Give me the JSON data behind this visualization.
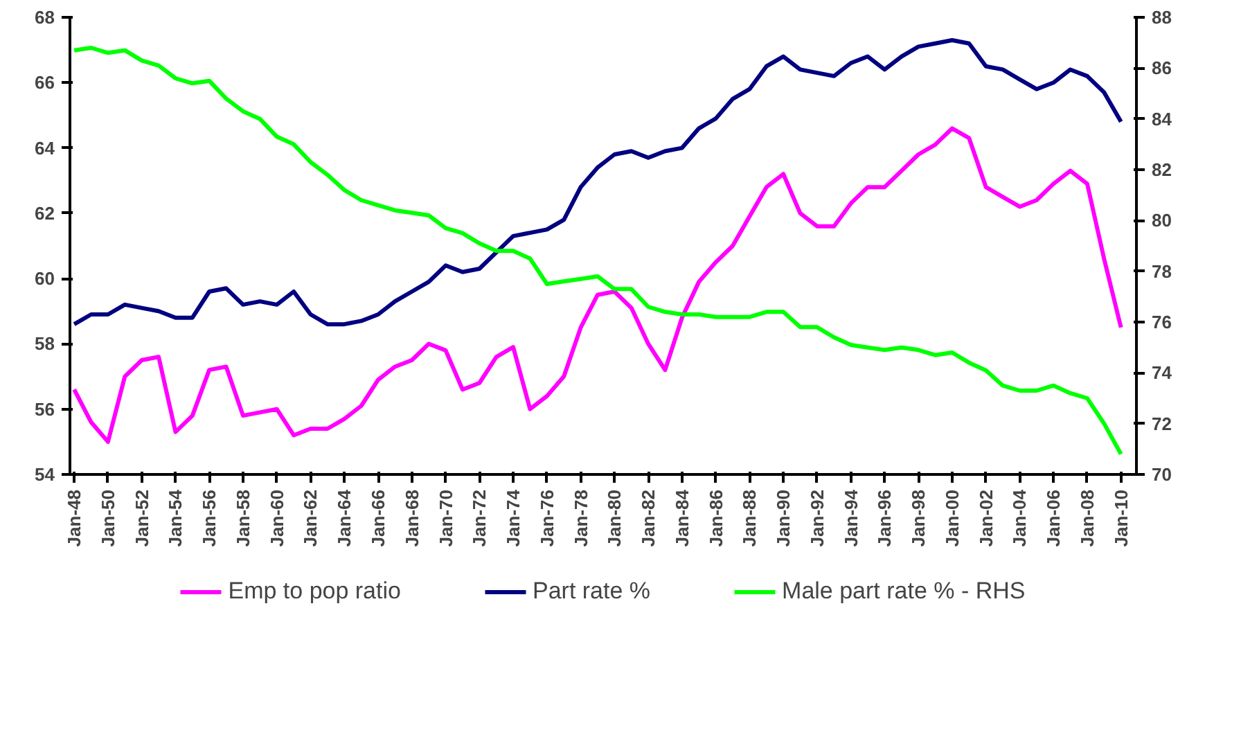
{
  "chart_data": {
    "type": "line",
    "x": [
      "1948",
      "1949",
      "1950",
      "1951",
      "1952",
      "1953",
      "1954",
      "1955",
      "1956",
      "1957",
      "1958",
      "1959",
      "1960",
      "1961",
      "1962",
      "1963",
      "1964",
      "1965",
      "1966",
      "1967",
      "1968",
      "1969",
      "1970",
      "1971",
      "1972",
      "1973",
      "1974",
      "1975",
      "1976",
      "1977",
      "1978",
      "1979",
      "1980",
      "1981",
      "1982",
      "1983",
      "1984",
      "1985",
      "1986",
      "1987",
      "1988",
      "1989",
      "1990",
      "1991",
      "1992",
      "1993",
      "1994",
      "1995",
      "1996",
      "1997",
      "1998",
      "1999",
      "2000",
      "2001",
      "2002",
      "2003",
      "2004",
      "2005",
      "2006",
      "2007",
      "2008",
      "2009",
      "2010"
    ],
    "series": [
      {
        "name": "Emp to pop ratio",
        "color": "#ff00ff",
        "values": [
          56.6,
          55.6,
          55.0,
          57.0,
          57.5,
          57.6,
          55.3,
          55.8,
          57.2,
          57.3,
          55.8,
          55.9,
          56.0,
          55.2,
          55.4,
          55.4,
          55.7,
          56.1,
          56.9,
          57.3,
          57.5,
          58.0,
          57.8,
          56.6,
          56.8,
          57.6,
          57.9,
          56.0,
          56.4,
          57.0,
          58.5,
          59.5,
          59.6,
          59.1,
          58.0,
          57.2,
          58.8,
          59.9,
          60.5,
          61.0,
          61.9,
          62.8,
          63.2,
          62.0,
          61.6,
          61.6,
          62.3,
          62.8,
          62.8,
          63.3,
          63.8,
          64.1,
          64.6,
          64.3,
          62.8,
          62.5,
          62.2,
          62.4,
          62.9,
          63.3,
          62.9,
          60.6,
          58.5
        ]
      },
      {
        "name": "Part rate %",
        "color": "#000080",
        "values": [
          58.6,
          58.9,
          58.9,
          59.2,
          59.1,
          59.0,
          58.8,
          58.8,
          59.6,
          59.7,
          59.2,
          59.3,
          59.2,
          59.6,
          58.9,
          58.6,
          58.6,
          58.7,
          58.9,
          59.3,
          59.6,
          59.9,
          60.4,
          60.2,
          60.3,
          60.8,
          61.3,
          61.4,
          61.5,
          61.8,
          62.8,
          63.4,
          63.8,
          63.9,
          63.7,
          63.9,
          64.0,
          64.6,
          64.9,
          65.5,
          65.8,
          66.5,
          66.8,
          66.4,
          66.3,
          66.2,
          66.6,
          66.8,
          66.4,
          66.8,
          67.1,
          67.2,
          67.3,
          67.2,
          66.5,
          66.4,
          66.1,
          65.8,
          66.0,
          66.4,
          66.2,
          65.7,
          64.8
        ]
      },
      {
        "name": "Male part rate % - RHS",
        "color": "#00ff00",
        "axis": "y2",
        "values": [
          86.7,
          86.8,
          86.6,
          86.7,
          86.3,
          86.1,
          85.6,
          85.4,
          85.5,
          84.8,
          84.3,
          84.0,
          83.3,
          83.0,
          82.3,
          81.8,
          81.2,
          80.8,
          80.6,
          80.4,
          80.3,
          80.2,
          79.7,
          79.5,
          79.1,
          78.8,
          78.8,
          78.5,
          77.5,
          77.6,
          77.7,
          77.8,
          77.3,
          77.3,
          76.6,
          76.4,
          76.3,
          76.3,
          76.2,
          76.2,
          76.2,
          76.4,
          76.4,
          75.8,
          75.8,
          75.4,
          75.1,
          75.0,
          74.9,
          75.0,
          74.9,
          74.7,
          74.8,
          74.4,
          74.1,
          73.5,
          73.3,
          73.3,
          73.5,
          73.2,
          73.0,
          72.0,
          70.8
        ]
      }
    ],
    "xlim": [
      "1947-10",
      "2010-12"
    ],
    "xticks": [
      {
        "value": "1948",
        "label": "Jan-48"
      },
      {
        "value": "1950",
        "label": "Jan-50"
      },
      {
        "value": "1952",
        "label": "Jan-52"
      },
      {
        "value": "1954",
        "label": "Jan-54"
      },
      {
        "value": "1956",
        "label": "Jan-56"
      },
      {
        "value": "1958",
        "label": "Jan-58"
      },
      {
        "value": "1960",
        "label": "Jan-60"
      },
      {
        "value": "1962",
        "label": "Jan-62"
      },
      {
        "value": "1964",
        "label": "Jan-64"
      },
      {
        "value": "1966",
        "label": "Jan-66"
      },
      {
        "value": "1968",
        "label": "Jan-68"
      },
      {
        "value": "1970",
        "label": "Jan-70"
      },
      {
        "value": "1972",
        "label": "Jan-72"
      },
      {
        "value": "1974",
        "label": "Jan-74"
      },
      {
        "value": "1976",
        "label": "Jan-76"
      },
      {
        "value": "1978",
        "label": "Jan-78"
      },
      {
        "value": "1980",
        "label": "Jan-80"
      },
      {
        "value": "1982",
        "label": "Jan-82"
      },
      {
        "value": "1984",
        "label": "Jan-84"
      },
      {
        "value": "1986",
        "label": "Jan-86"
      },
      {
        "value": "1988",
        "label": "Jan-88"
      },
      {
        "value": "1990",
        "label": "Jan-90"
      },
      {
        "value": "1992",
        "label": "Jan-92"
      },
      {
        "value": "1994",
        "label": "Jan-94"
      },
      {
        "value": "1996",
        "label": "Jan-96"
      },
      {
        "value": "1998",
        "label": "Jan-98"
      },
      {
        "value": "2000",
        "label": "Jan-00"
      },
      {
        "value": "2002",
        "label": "Jan-02"
      },
      {
        "value": "2004",
        "label": "Jan-04"
      },
      {
        "value": "2006",
        "label": "Jan-06"
      },
      {
        "value": "2008",
        "label": "Jan-08"
      },
      {
        "value": "2010",
        "label": "Jan-10"
      }
    ],
    "ylim": [
      54,
      68
    ],
    "yticks": [
      54,
      56,
      58,
      60,
      62,
      64,
      66,
      68
    ],
    "y2lim": [
      70,
      88
    ],
    "y2ticks": [
      70,
      72,
      74,
      76,
      78,
      80,
      82,
      84,
      86,
      88
    ],
    "legend": "bottom",
    "grid": false,
    "marker": "none",
    "line_style": "solid"
  }
}
